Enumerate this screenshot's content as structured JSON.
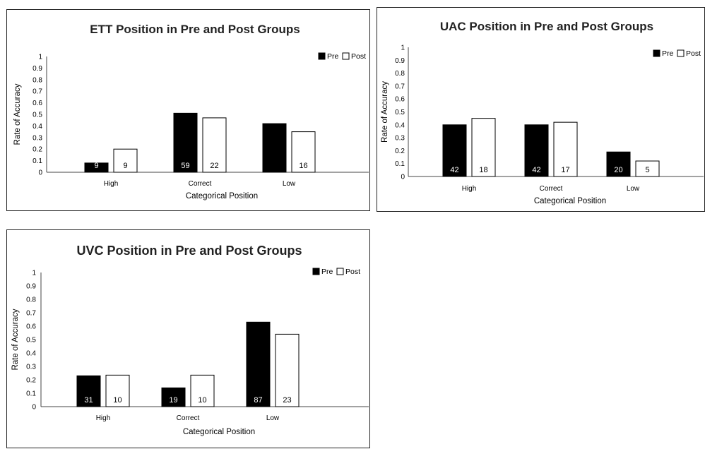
{
  "chart_data": [
    {
      "type": "bar",
      "title": "ETT Position in Pre and Post Groups",
      "xlabel": "Categorical Position",
      "ylabel": "Rate of Accuracy",
      "ylim": [
        0,
        1
      ],
      "yticks": [
        "0",
        "0.1",
        "0.2",
        "0.3",
        "0.4",
        "0.5",
        "0.6",
        "0.7",
        "0.8",
        "0.9",
        "1"
      ],
      "categories": [
        "High",
        "Correct",
        "Low"
      ],
      "legend_position": "top-right",
      "series": [
        {
          "name": "Pre",
          "color": "#000000",
          "values": [
            0.08,
            0.51,
            0.42
          ],
          "labels": [
            "9",
            "59",
            ""
          ]
        },
        {
          "name": "Post",
          "color": "#ffffff",
          "values": [
            0.2,
            0.47,
            0.35
          ],
          "labels": [
            "9",
            "22",
            "16"
          ]
        }
      ]
    },
    {
      "type": "bar",
      "title": "UAC Position in Pre and Post Groups",
      "xlabel": "Categorical Position",
      "ylabel": "Rate of Accuracy",
      "ylim": [
        0,
        1
      ],
      "yticks": [
        "0",
        "0.1",
        "0.2",
        "0.3",
        "0.4",
        "0.5",
        "0.6",
        "0.7",
        "0.8",
        "0.9",
        "1"
      ],
      "categories": [
        "High",
        "Correct",
        "Low"
      ],
      "legend_position": "top-right",
      "series": [
        {
          "name": "Pre",
          "color": "#000000",
          "values": [
            0.4,
            0.4,
            0.19
          ],
          "labels": [
            "42",
            "42",
            "20"
          ]
        },
        {
          "name": "Post",
          "color": "#ffffff",
          "values": [
            0.45,
            0.42,
            0.12
          ],
          "labels": [
            "18",
            "17",
            "5"
          ]
        }
      ]
    },
    {
      "type": "bar",
      "title": "UVC Position in Pre and Post Groups",
      "xlabel": "Categorical Position",
      "ylabel": "Rate of Accuracy",
      "ylim": [
        0,
        1
      ],
      "yticks": [
        "0",
        "0.1",
        "0.2",
        "0.3",
        "0.4",
        "0.5",
        "0.6",
        "0.7",
        "0.8",
        "0.9",
        "1"
      ],
      "categories": [
        "High",
        "Correct",
        "Low"
      ],
      "legend_position": "top-right",
      "series": [
        {
          "name": "Pre",
          "color": "#000000",
          "values": [
            0.23,
            0.14,
            0.63
          ],
          "labels": [
            "31",
            "19",
            "87"
          ]
        },
        {
          "name": "Post",
          "color": "#ffffff",
          "values": [
            0.235,
            0.235,
            0.54
          ],
          "labels": [
            "10",
            "10",
            "23"
          ]
        }
      ]
    }
  ]
}
